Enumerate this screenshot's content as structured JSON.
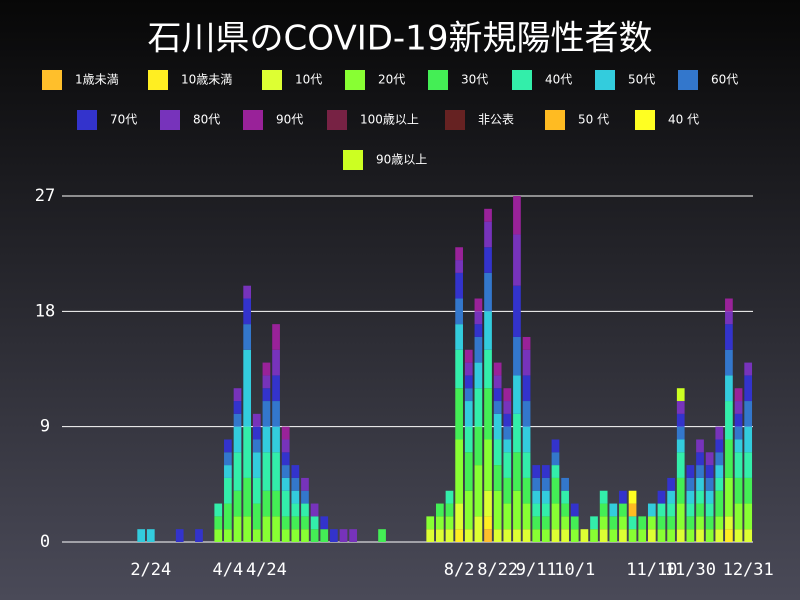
{
  "chart_data": {
    "type": "stacked-bar",
    "title": "石川県のCOVID-19新規陽性者数",
    "categories": [
      null,
      null,
      null,
      null,
      null,
      null,
      null,
      null,
      null,
      null,
      null,
      "2/24",
      null,
      null,
      null,
      null,
      null,
      null,
      null,
      "4/4",
      null,
      null,
      null,
      "4/24",
      null,
      null,
      null,
      null,
      null,
      null,
      null,
      null,
      null,
      null,
      null,
      null,
      null,
      null,
      null,
      null,
      null,
      null,
      null,
      "8/2",
      null,
      null,
      null,
      "8/22",
      null,
      null,
      null,
      "9/11",
      null,
      null,
      null,
      "10/1",
      null,
      null,
      null,
      null,
      null,
      null,
      null,
      "11/10",
      null,
      null,
      null,
      "11/30",
      null,
      null,
      null,
      null,
      null,
      "12/31"
    ],
    "ylim": [
      0,
      27
    ],
    "yticks": [
      0,
      9,
      18,
      27
    ],
    "grid": true,
    "series": [
      {
        "name": "1歳未満",
        "color": "#ffbf2b",
        "values": [
          0,
          0,
          0,
          0,
          0,
          0,
          0,
          0,
          0,
          0,
          0,
          0,
          0,
          0,
          0,
          0,
          0,
          0,
          0,
          0,
          0,
          0,
          0,
          0,
          0,
          0,
          0,
          0,
          0,
          0,
          0,
          0,
          0,
          0,
          0,
          0,
          0,
          0,
          0,
          0,
          0,
          0,
          0,
          0,
          0,
          0,
          1,
          0,
          0,
          0,
          0,
          0,
          0,
          0,
          0,
          0,
          0,
          0,
          0,
          0,
          0,
          0,
          0,
          0,
          0,
          0,
          0,
          0,
          0,
          0,
          0,
          0,
          0,
          0
        ]
      },
      {
        "name": "10歳未満",
        "color": "#ffee22",
        "values": [
          0,
          0,
          0,
          0,
          0,
          0,
          0,
          0,
          0,
          0,
          0,
          0,
          0,
          0,
          0,
          0,
          0,
          0,
          0,
          0,
          0,
          0,
          0,
          0,
          0,
          0,
          0,
          0,
          0,
          0,
          0,
          0,
          0,
          0,
          0,
          0,
          0,
          0,
          0,
          0,
          0,
          0,
          0,
          1,
          0,
          0,
          1,
          0,
          0,
          0,
          0,
          0,
          0,
          0,
          0,
          0,
          0,
          0,
          0,
          0,
          0,
          0,
          0,
          0,
          0,
          0,
          0,
          0,
          0,
          0,
          0,
          1,
          0,
          0
        ]
      },
      {
        "name": "10代",
        "color": "#ddff33",
        "values": [
          0,
          0,
          0,
          0,
          0,
          0,
          0,
          0,
          0,
          0,
          0,
          0,
          0,
          0,
          0,
          0,
          0,
          0,
          0,
          0,
          0,
          0,
          0,
          0,
          0,
          0,
          0,
          0,
          0,
          0,
          0,
          0,
          0,
          0,
          0,
          0,
          0,
          0,
          0,
          0,
          1,
          1,
          1,
          2,
          1,
          2,
          2,
          1,
          1,
          1,
          1,
          0,
          0,
          1,
          1,
          0,
          1,
          0,
          1,
          0,
          1,
          0,
          0,
          1,
          0,
          0,
          1,
          0,
          1,
          0,
          1,
          1,
          1,
          1
        ]
      },
      {
        "name": "20代",
        "color": "#88ff33",
        "values": [
          0,
          0,
          0,
          0,
          0,
          0,
          0,
          0,
          0,
          0,
          0,
          0,
          0,
          0,
          0,
          0,
          0,
          0,
          1,
          1,
          2,
          2,
          1,
          2,
          2,
          1,
          1,
          1,
          0,
          0,
          0,
          0,
          0,
          0,
          0,
          0,
          0,
          0,
          0,
          0,
          1,
          1,
          1,
          5,
          3,
          4,
          4,
          3,
          2,
          3,
          2,
          1,
          1,
          2,
          1,
          1,
          0,
          1,
          1,
          1,
          1,
          1,
          1,
          1,
          1,
          1,
          2,
          1,
          1,
          1,
          1,
          3,
          2,
          2
        ]
      },
      {
        "name": "30代",
        "color": "#44ee55",
        "values": [
          0,
          0,
          0,
          0,
          0,
          0,
          0,
          0,
          0,
          0,
          0,
          0,
          0,
          0,
          0,
          0,
          0,
          0,
          1,
          2,
          2,
          3,
          2,
          2,
          2,
          1,
          1,
          1,
          1,
          1,
          0,
          0,
          0,
          0,
          0,
          1,
          0,
          0,
          0,
          0,
          0,
          1,
          1,
          4,
          3,
          3,
          4,
          2,
          2,
          3,
          2,
          1,
          1,
          2,
          1,
          1,
          0,
          0,
          1,
          1,
          1,
          0,
          1,
          0,
          1,
          1,
          2,
          1,
          1,
          1,
          2,
          3,
          2,
          2
        ]
      },
      {
        "name": "40代",
        "color": "#33eeaa",
        "values": [
          0,
          0,
          0,
          0,
          0,
          0,
          0,
          0,
          0,
          0,
          0,
          0,
          0,
          0,
          0,
          0,
          0,
          0,
          1,
          2,
          3,
          4,
          2,
          3,
          3,
          2,
          1,
          1,
          1,
          0,
          0,
          0,
          0,
          0,
          0,
          0,
          0,
          0,
          0,
          0,
          0,
          0,
          1,
          3,
          2,
          3,
          3,
          2,
          2,
          3,
          2,
          1,
          1,
          1,
          1,
          0,
          0,
          1,
          1,
          0,
          0,
          1,
          0,
          0,
          1,
          1,
          2,
          1,
          1,
          1,
          1,
          3,
          2,
          2
        ]
      },
      {
        "name": "50代",
        "color": "#33ccdd",
        "values": [
          0,
          0,
          0,
          0,
          0,
          0,
          0,
          0,
          0,
          0,
          1,
          1,
          0,
          0,
          0,
          0,
          0,
          0,
          0,
          1,
          2,
          6,
          2,
          2,
          2,
          1,
          1,
          0,
          0,
          0,
          0,
          0,
          0,
          0,
          0,
          0,
          0,
          0,
          0,
          0,
          0,
          0,
          0,
          2,
          2,
          2,
          3,
          2,
          1,
          3,
          2,
          1,
          1,
          0,
          0,
          0,
          0,
          0,
          0,
          1,
          0,
          0,
          0,
          1,
          0,
          1,
          1,
          1,
          1,
          1,
          1,
          2,
          1,
          2
        ]
      },
      {
        "name": "60代",
        "color": "#3377cc",
        "values": [
          0,
          0,
          0,
          0,
          0,
          0,
          0,
          0,
          0,
          0,
          0,
          0,
          0,
          0,
          0,
          0,
          0,
          0,
          0,
          1,
          1,
          2,
          1,
          2,
          2,
          1,
          1,
          1,
          0,
          0,
          0,
          0,
          0,
          0,
          0,
          0,
          0,
          0,
          0,
          0,
          0,
          0,
          0,
          2,
          1,
          2,
          3,
          1,
          1,
          3,
          2,
          1,
          1,
          1,
          1,
          0,
          0,
          0,
          0,
          0,
          0,
          0,
          0,
          0,
          0,
          0,
          1,
          1,
          1,
          1,
          1,
          2,
          1,
          2
        ]
      },
      {
        "name": "70代",
        "color": "#3333cc",
        "values": [
          0,
          0,
          0,
          0,
          0,
          0,
          0,
          0,
          0,
          0,
          0,
          0,
          0,
          0,
          1,
          0,
          1,
          0,
          0,
          1,
          1,
          2,
          1,
          1,
          2,
          1,
          1,
          0,
          0,
          1,
          1,
          0,
          0,
          0,
          0,
          0,
          0,
          0,
          0,
          0,
          0,
          0,
          0,
          2,
          1,
          1,
          2,
          1,
          1,
          4,
          2,
          1,
          1,
          1,
          0,
          1,
          0,
          0,
          0,
          0,
          1,
          0,
          0,
          0,
          1,
          1,
          1,
          1,
          1,
          1,
          1,
          2,
          1,
          2
        ]
      },
      {
        "name": "80代",
        "color": "#7733bb",
        "values": [
          0,
          0,
          0,
          0,
          0,
          0,
          0,
          0,
          0,
          0,
          0,
          0,
          0,
          0,
          0,
          0,
          0,
          0,
          0,
          0,
          1,
          1,
          1,
          1,
          2,
          1,
          0,
          1,
          1,
          0,
          0,
          1,
          1,
          0,
          0,
          0,
          0,
          0,
          0,
          0,
          0,
          0,
          0,
          1,
          1,
          1,
          2,
          1,
          1,
          4,
          2,
          0,
          0,
          0,
          0,
          0,
          0,
          0,
          0,
          0,
          0,
          0,
          0,
          0,
          0,
          0,
          1,
          0,
          1,
          1,
          1,
          1,
          1,
          1
        ]
      },
      {
        "name": "90代",
        "color": "#992299",
        "values": [
          0,
          0,
          0,
          0,
          0,
          0,
          0,
          0,
          0,
          0,
          0,
          0,
          0,
          0,
          0,
          0,
          0,
          0,
          0,
          0,
          0,
          0,
          0,
          1,
          2,
          1,
          0,
          0,
          0,
          0,
          0,
          0,
          0,
          0,
          0,
          0,
          0,
          0,
          0,
          0,
          0,
          0,
          0,
          1,
          1,
          1,
          1,
          1,
          1,
          3,
          1,
          0,
          0,
          0,
          0,
          0,
          0,
          0,
          0,
          0,
          0,
          0,
          0,
          0,
          0,
          0,
          0,
          0,
          0,
          0,
          0,
          1,
          1,
          0
        ]
      },
      {
        "name": "100歳以上",
        "color": "#772244",
        "values": [
          0,
          0,
          0,
          0,
          0,
          0,
          0,
          0,
          0,
          0,
          0,
          0,
          0,
          0,
          0,
          0,
          0,
          0,
          0,
          0,
          0,
          0,
          0,
          0,
          0,
          0,
          0,
          0,
          0,
          0,
          0,
          0,
          0,
          0,
          0,
          0,
          0,
          0,
          0,
          0,
          0,
          0,
          0,
          0,
          0,
          0,
          0,
          0,
          0,
          0,
          0,
          0,
          0,
          0,
          0,
          0,
          0,
          0,
          0,
          0,
          0,
          0,
          0,
          0,
          0,
          0,
          0,
          0,
          0,
          0,
          0,
          0,
          0,
          0
        ]
      },
      {
        "name": "非公表",
        "color": "#662222",
        "values": [
          0,
          0,
          0,
          0,
          0,
          0,
          0,
          0,
          0,
          0,
          0,
          0,
          0,
          0,
          0,
          0,
          0,
          0,
          0,
          0,
          0,
          0,
          0,
          0,
          0,
          0,
          0,
          0,
          0,
          0,
          0,
          0,
          0,
          0,
          0,
          0,
          0,
          0,
          0,
          0,
          0,
          0,
          0,
          0,
          0,
          0,
          0,
          0,
          0,
          0,
          0,
          0,
          0,
          0,
          0,
          0,
          0,
          0,
          0,
          0,
          0,
          0,
          0,
          0,
          0,
          0,
          0,
          0,
          0,
          0,
          0,
          0,
          0,
          0
        ]
      },
      {
        "name": "50 代",
        "color": "#ffbb22",
        "values": [
          0,
          0,
          0,
          0,
          0,
          0,
          0,
          0,
          0,
          0,
          0,
          0,
          0,
          0,
          0,
          0,
          0,
          0,
          0,
          0,
          0,
          0,
          0,
          0,
          0,
          0,
          0,
          0,
          0,
          0,
          0,
          0,
          0,
          0,
          0,
          0,
          0,
          0,
          0,
          0,
          0,
          0,
          0,
          0,
          0,
          0,
          0,
          0,
          0,
          0,
          0,
          0,
          0,
          0,
          0,
          0,
          0,
          0,
          0,
          0,
          0,
          1,
          0,
          0,
          0,
          0,
          0,
          0,
          0,
          0,
          0,
          0,
          0,
          0
        ]
      },
      {
        "name": "40 代",
        "color": "#ffff22",
        "values": [
          0,
          0,
          0,
          0,
          0,
          0,
          0,
          0,
          0,
          0,
          0,
          0,
          0,
          0,
          0,
          0,
          0,
          0,
          0,
          0,
          0,
          0,
          0,
          0,
          0,
          0,
          0,
          0,
          0,
          0,
          0,
          0,
          0,
          0,
          0,
          0,
          0,
          0,
          0,
          0,
          0,
          0,
          0,
          0,
          0,
          0,
          0,
          0,
          0,
          0,
          0,
          0,
          0,
          0,
          0,
          0,
          0,
          0,
          0,
          0,
          0,
          1,
          0,
          0,
          0,
          0,
          0,
          0,
          0,
          0,
          0,
          0,
          0,
          0
        ]
      },
      {
        "name": "90歳以上",
        "color": "#ccff22",
        "values": [
          0,
          0,
          0,
          0,
          0,
          0,
          0,
          0,
          0,
          0,
          0,
          0,
          0,
          0,
          0,
          0,
          0,
          0,
          0,
          0,
          0,
          0,
          0,
          0,
          0,
          0,
          0,
          0,
          0,
          0,
          0,
          0,
          0,
          0,
          0,
          0,
          0,
          0,
          0,
          0,
          0,
          0,
          0,
          0,
          0,
          0,
          0,
          0,
          0,
          0,
          0,
          0,
          0,
          0,
          0,
          0,
          0,
          0,
          0,
          0,
          0,
          0,
          0,
          0,
          0,
          0,
          1,
          0,
          0,
          0,
          0,
          0,
          0,
          0
        ]
      }
    ]
  }
}
